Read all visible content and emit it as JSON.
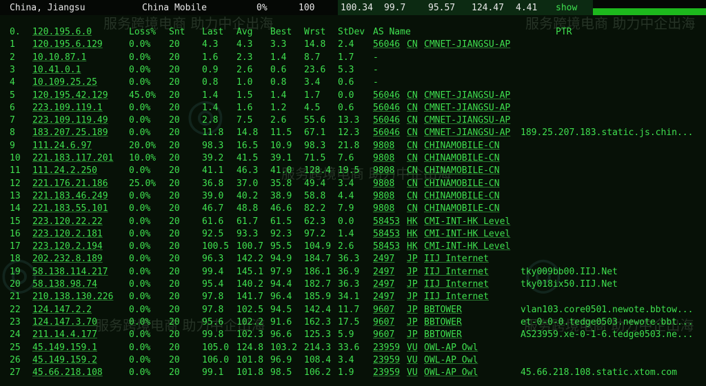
{
  "topbar": {
    "location": "China, Jiangsu",
    "isp": "China Mobile",
    "loss": "0%",
    "snt": "100",
    "last": "100.34",
    "avg": "99.7",
    "best": "95.57",
    "wrst": "124.47",
    "stdev": "4.41",
    "show_link": "show"
  },
  "watermark": "服务跨境电商 助力中企出海",
  "header": [
    "0.",
    "120.195.6.0",
    "Loss%",
    "Snt",
    "Last",
    "Avg",
    "Best",
    "Wrst",
    "StDev",
    "AS Name",
    "PTR"
  ],
  "hops": [
    [
      "1",
      "120.195.6.129",
      "0.0%",
      "20",
      "4.3",
      "4.3",
      "3.3",
      "14.8",
      "2.4",
      "56046",
      "CN",
      "CMNET-JIANGSU-AP",
      ""
    ],
    [
      "2",
      "10.10.87.1",
      "0.0%",
      "20",
      "1.6",
      "2.3",
      "1.4",
      "8.7",
      "1.7",
      "-",
      "",
      "",
      ""
    ],
    [
      "3",
      "10.41.0.1",
      "0.0%",
      "20",
      "0.9",
      "2.6",
      "0.6",
      "23.6",
      "5.3",
      "-",
      "",
      "",
      ""
    ],
    [
      "4",
      "10.109.25.25",
      "0.0%",
      "20",
      "0.8",
      "1.0",
      "0.8",
      "3.4",
      "0.6",
      "-",
      "",
      "",
      ""
    ],
    [
      "5",
      "120.195.42.129",
      "45.0%",
      "20",
      "1.4",
      "1.5",
      "1.4",
      "1.7",
      "0.0",
      "56046",
      "CN",
      "CMNET-JIANGSU-AP",
      ""
    ],
    [
      "6",
      "223.109.119.1",
      "0.0%",
      "20",
      "1.4",
      "1.6",
      "1.2",
      "4.5",
      "0.6",
      "56046",
      "CN",
      "CMNET-JIANGSU-AP",
      ""
    ],
    [
      "7",
      "223.109.119.49",
      "0.0%",
      "20",
      "2.8",
      "7.5",
      "2.6",
      "55.6",
      "13.3",
      "56046",
      "CN",
      "CMNET-JIANGSU-AP",
      ""
    ],
    [
      "8",
      "183.207.25.189",
      "0.0%",
      "20",
      "11.8",
      "14.8",
      "11.5",
      "67.1",
      "12.3",
      "56046",
      "CN",
      "CMNET-JIANGSU-AP",
      "189.25.207.183.static.js.chin..."
    ],
    [
      "9",
      "111.24.6.97",
      "20.0%",
      "20",
      "98.3",
      "16.5",
      "10.9",
      "98.3",
      "21.8",
      "9808",
      "CN",
      "CHINAMOBILE-CN",
      ""
    ],
    [
      "10",
      "221.183.117.201",
      "10.0%",
      "20",
      "39.2",
      "41.5",
      "39.1",
      "71.5",
      "7.6",
      "9808",
      "CN",
      "CHINAMOBILE-CN",
      ""
    ],
    [
      "11",
      "111.24.2.250",
      "0.0%",
      "20",
      "41.1",
      "46.3",
      "41.0",
      "128.4",
      "19.5",
      "9808",
      "CN",
      "CHINAMOBILE-CN",
      ""
    ],
    [
      "12",
      "221.176.21.186",
      "25.0%",
      "20",
      "36.8",
      "37.0",
      "35.8",
      "49.4",
      "3.4",
      "9808",
      "CN",
      "CHINAMOBILE-CN",
      ""
    ],
    [
      "13",
      "221.183.46.249",
      "0.0%",
      "20",
      "39.0",
      "40.2",
      "38.9",
      "58.8",
      "4.4",
      "9808",
      "CN",
      "CHINAMOBILE-CN",
      ""
    ],
    [
      "14",
      "221.183.55.101",
      "0.0%",
      "20",
      "46.7",
      "48.8",
      "46.6",
      "82.2",
      "7.9",
      "9808",
      "CN",
      "CHINAMOBILE-CN",
      ""
    ],
    [
      "15",
      "223.120.22.22",
      "0.0%",
      "20",
      "61.6",
      "61.7",
      "61.5",
      "62.3",
      "0.0",
      "58453",
      "HK",
      "CMI-INT-HK Level",
      ""
    ],
    [
      "16",
      "223.120.2.181",
      "0.0%",
      "20",
      "92.5",
      "93.3",
      "92.3",
      "97.2",
      "1.4",
      "58453",
      "HK",
      "CMI-INT-HK Level",
      ""
    ],
    [
      "17",
      "223.120.2.194",
      "0.0%",
      "20",
      "100.5",
      "100.7",
      "95.5",
      "104.9",
      "2.6",
      "58453",
      "HK",
      "CMI-INT-HK Level",
      ""
    ],
    [
      "18",
      "202.232.8.189",
      "0.0%",
      "20",
      "96.3",
      "142.2",
      "94.9",
      "184.7",
      "36.3",
      "2497",
      "JP",
      "IIJ Internet",
      ""
    ],
    [
      "19",
      "58.138.114.217",
      "0.0%",
      "20",
      "99.4",
      "145.1",
      "97.9",
      "186.1",
      "36.9",
      "2497",
      "JP",
      "IIJ Internet",
      "tky009bb00.IIJ.Net"
    ],
    [
      "20",
      "58.138.98.74",
      "0.0%",
      "20",
      "95.4",
      "140.2",
      "94.4",
      "182.7",
      "36.3",
      "2497",
      "JP",
      "IIJ Internet",
      "tky018ix50.IIJ.Net"
    ],
    [
      "21",
      "210.138.130.226",
      "0.0%",
      "20",
      "97.8",
      "141.7",
      "96.4",
      "185.9",
      "34.1",
      "2497",
      "JP",
      "IIJ Internet",
      ""
    ],
    [
      "22",
      "124.147.2.2",
      "0.0%",
      "20",
      "97.8",
      "102.5",
      "94.5",
      "142.4",
      "11.7",
      "9607",
      "JP",
      "BBTOWER",
      "vlan103.core0501.newote.bbtow..."
    ],
    [
      "23",
      "124.147.3.70",
      "0.0%",
      "20",
      "95.6",
      "102.2",
      "91.6",
      "162.3",
      "17.5",
      "9607",
      "JP",
      "BBTOWER",
      "et-0-0-0.tedge0503.newote.bbt..."
    ],
    [
      "24",
      "211.14.4.177",
      "0.0%",
      "20",
      "99.8",
      "102.3",
      "96.6",
      "125.3",
      "5.9",
      "9607",
      "JP",
      "BBTOWER",
      "AS23959.xe-0-1-6.tedge0503.ne..."
    ],
    [
      "25",
      "45.149.159.1",
      "0.0%",
      "20",
      "105.0",
      "124.8",
      "103.2",
      "214.3",
      "33.6",
      "23959",
      "VU",
      "OWL-AP Owl",
      ""
    ],
    [
      "26",
      "45.149.159.2",
      "0.0%",
      "20",
      "106.0",
      "101.8",
      "96.9",
      "108.4",
      "3.4",
      "23959",
      "VU",
      "OWL-AP Owl",
      ""
    ],
    [
      "27",
      "45.66.218.108",
      "0.0%",
      "20",
      "99.1",
      "101.8",
      "98.5",
      "106.2",
      "1.9",
      "23959",
      "VU",
      "OWL-AP Owl",
      "45.66.218.108.static.xtom.com"
    ]
  ]
}
